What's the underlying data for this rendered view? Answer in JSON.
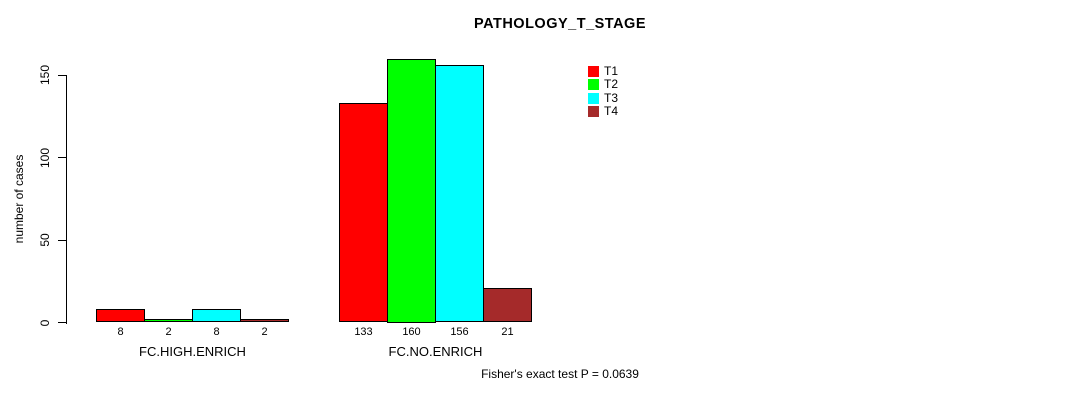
{
  "chart_data": {
    "type": "bar",
    "title": "PATHOLOGY_T_STAGE",
    "ylabel": "number of cases",
    "xlabel": "",
    "yticks": [
      0,
      50,
      100,
      150
    ],
    "ylim": [
      0,
      160
    ],
    "grid": false,
    "legend_position": "top-right-inside",
    "bar_value_labels_shown": true,
    "categories": [
      "FC.HIGH.ENRICH",
      "FC.NO.ENRICH"
    ],
    "series": [
      {
        "name": "T1",
        "color": "#ff0000",
        "values": [
          8,
          133
        ]
      },
      {
        "name": "T2",
        "color": "#00ff00",
        "values": [
          2,
          160
        ]
      },
      {
        "name": "T3",
        "color": "#00ffff",
        "values": [
          8,
          156
        ]
      },
      {
        "name": "T4",
        "color": "#a52a2a",
        "values": [
          2,
          21
        ]
      }
    ],
    "footnote": "Fisher's exact test P = 0.0639"
  },
  "colors": {
    "background": "#ffffff",
    "bar_border": "#000000",
    "axis": "#000000",
    "text": "#000000"
  }
}
